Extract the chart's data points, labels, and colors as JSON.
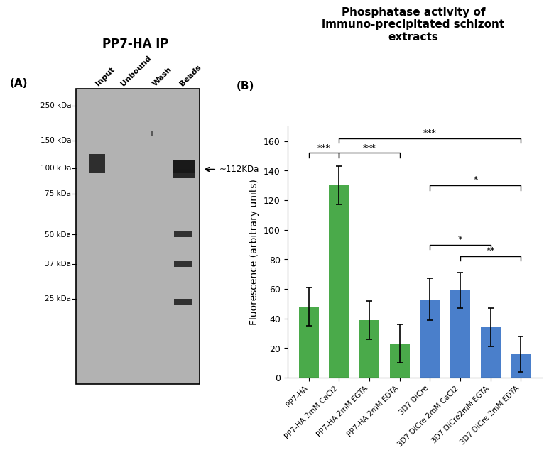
{
  "bar_title": "Phosphatase activity of\nimmuno-precipitated schizont\nextracts",
  "blot_title": "PP7-HA IP",
  "panel_a_label": "(A)",
  "panel_b_label": "(B)",
  "categories": [
    "PP7-HA",
    "PP7-HA 2mM CaCl2",
    "PP7-HA 2mM EGTA",
    "PP7-HA 2mM EDTA",
    "3D7 DiCre",
    "3D7 DiCre 2mM CaCl2",
    "3D7 DiCre2mM EGTA",
    "3D7 DiCre 2mM EDTA"
  ],
  "values": [
    48,
    130,
    39,
    23,
    53,
    59,
    34,
    16
  ],
  "errors": [
    13,
    13,
    13,
    13,
    14,
    12,
    13,
    12
  ],
  "bar_colors": [
    "#4aaa4a",
    "#4aaa4a",
    "#4aaa4a",
    "#4aaa4a",
    "#4a7fcb",
    "#4a7fcb",
    "#4a7fcb",
    "#4a7fcb"
  ],
  "ylabel": "Fluorescence (arbitrary units)",
  "ylim": [
    0,
    170
  ],
  "yticks": [
    0,
    20,
    40,
    60,
    80,
    100,
    120,
    140,
    160
  ],
  "blot_bg_color": "#b2b2b2",
  "arrow_label": "~112KDa",
  "ladder_labels": [
    "250 kDa",
    "150 kDa",
    "100 kDa",
    "75 kDa",
    "50 kDa",
    "37 kDa",
    "25 kDa"
  ],
  "lane_labels": [
    "Input",
    "Unbound",
    "Wash",
    "Beads"
  ],
  "title_fontsize": 11,
  "axis_fontsize": 10,
  "tick_fontsize": 9,
  "bar_width": 0.65
}
